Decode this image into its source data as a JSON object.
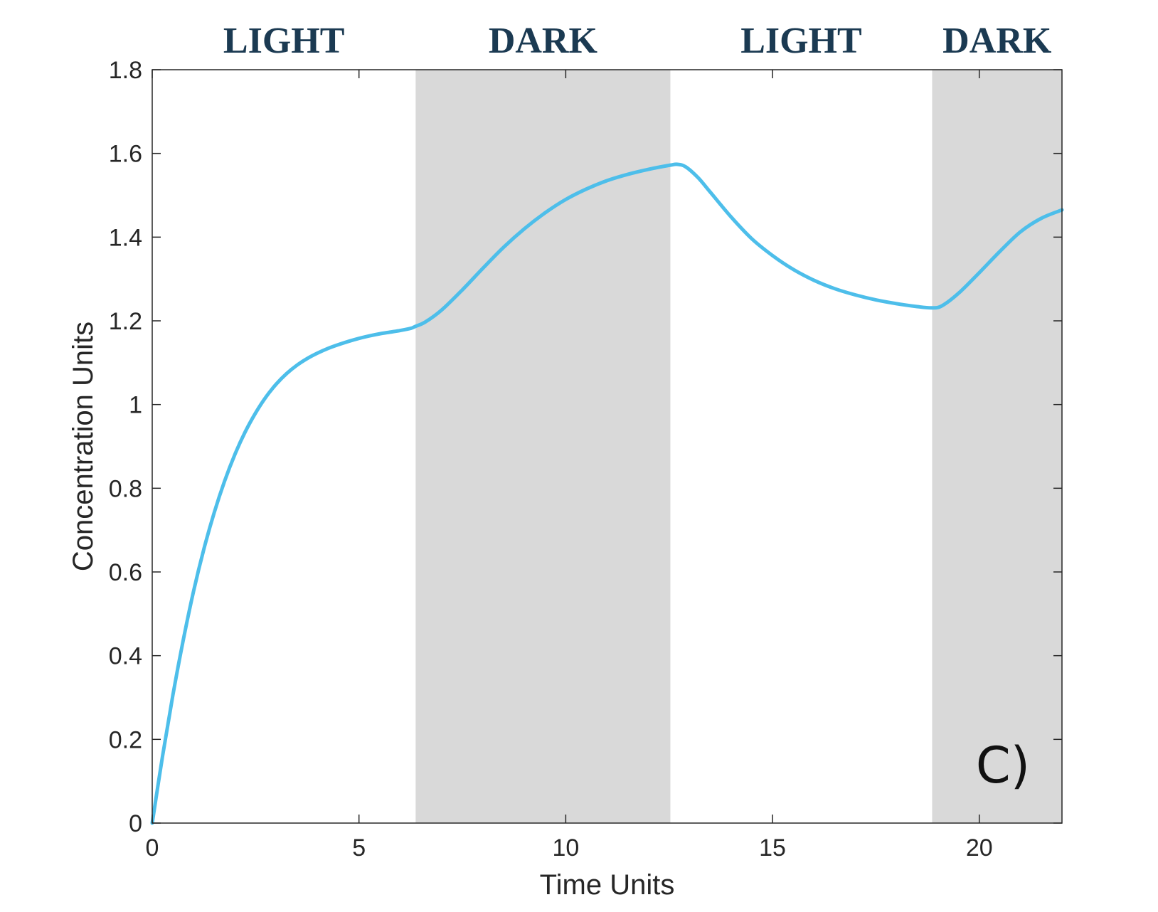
{
  "chart_data": {
    "type": "line",
    "title": "",
    "xlabel": "Time Units",
    "ylabel": "Concentration Units",
    "xlim": [
      0,
      22
    ],
    "ylim": [
      0,
      1.8
    ],
    "xticks": [
      0,
      5,
      10,
      15,
      20
    ],
    "xtick_labels": [
      "0",
      "5",
      "10",
      "15",
      "20"
    ],
    "yticks": [
      0,
      0.2,
      0.4,
      0.6,
      0.8,
      1.0,
      1.2,
      1.4,
      1.6,
      1.8
    ],
    "ytick_labels": [
      "0",
      "0.2",
      "0.4",
      "0.6",
      "0.8",
      "1",
      "1.2",
      "1.4",
      "1.6",
      "1.8"
    ],
    "grid": false,
    "panel_label": "C)",
    "phases": [
      {
        "label": "LIGHT",
        "start": 0,
        "end": 6.37,
        "shaded": false
      },
      {
        "label": "DARK",
        "start": 6.37,
        "end": 12.53,
        "shaded": true
      },
      {
        "label": "LIGHT",
        "start": 12.53,
        "end": 18.86,
        "shaded": false
      },
      {
        "label": "DARK",
        "start": 18.86,
        "end": 22,
        "shaded": true
      }
    ],
    "series": [
      {
        "color": "#4dbeea",
        "x": [
          0,
          0.25,
          0.5,
          0.75,
          1.0,
          1.25,
          1.5,
          1.75,
          2.0,
          2.25,
          2.5,
          2.75,
          3.0,
          3.25,
          3.5,
          3.75,
          4.0,
          4.25,
          4.5,
          4.75,
          5.0,
          5.25,
          5.5,
          5.75,
          6.0,
          6.25,
          6.37,
          6.6,
          7.0,
          7.5,
          8.0,
          8.5,
          9.0,
          9.5,
          10.0,
          10.5,
          11.0,
          11.5,
          12.0,
          12.53,
          12.7,
          12.9,
          13.2,
          13.5,
          14.0,
          14.5,
          15.0,
          15.5,
          16.0,
          16.5,
          17.0,
          17.5,
          18.0,
          18.5,
          18.86,
          19.1,
          19.5,
          20.0,
          20.5,
          21.0,
          21.5,
          22.0
        ],
        "y": [
          0,
          0.16,
          0.306,
          0.437,
          0.554,
          0.655,
          0.742,
          0.817,
          0.881,
          0.935,
          0.98,
          1.018,
          1.049,
          1.074,
          1.094,
          1.11,
          1.123,
          1.134,
          1.143,
          1.151,
          1.158,
          1.164,
          1.169,
          1.173,
          1.177,
          1.182,
          1.187,
          1.197,
          1.226,
          1.274,
          1.326,
          1.376,
          1.42,
          1.458,
          1.49,
          1.515,
          1.535,
          1.55,
          1.562,
          1.572,
          1.574,
          1.568,
          1.542,
          1.507,
          1.448,
          1.396,
          1.356,
          1.323,
          1.297,
          1.277,
          1.262,
          1.25,
          1.241,
          1.234,
          1.231,
          1.236,
          1.266,
          1.315,
          1.366,
          1.413,
          1.445,
          1.465
        ]
      }
    ]
  }
}
